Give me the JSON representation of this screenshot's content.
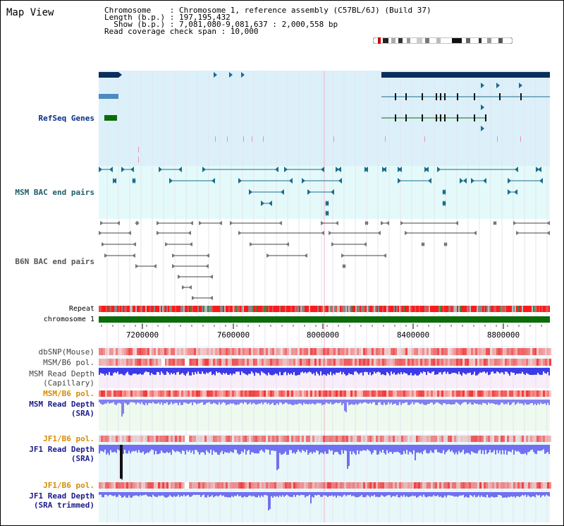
{
  "page": {
    "title": "Map View"
  },
  "info": {
    "line1": "Chromosome    : Chromosome 1, reference assembly (C57BL/6J) (Build 37)",
    "line2": "Length (b.p.) : 197,195,432",
    "line3": "  Show (b.p.) : 7,081,080-9,081,637 : 2,000,558 bp",
    "line4": "Read coverage check span : 10,000"
  },
  "tracks": {
    "refseq": "RefSeq Genes",
    "msm_bac": "MSM BAC end pairs",
    "b6n_bac": "B6N BAC end pairs",
    "repeat": "Repeat",
    "chromosome": "chromosome 1",
    "dbsnp": "dbSNP(Mouse)",
    "msm_b6_pol_1": "MSM/B6 pol.",
    "msm_read_depth_cap_1": "MSM Read Depth",
    "msm_read_depth_cap_2": "(Capillary)",
    "msm_b6_pol_2": "MSM/B6 pol.",
    "msm_read_depth_sra_1": "MSM Read Depth",
    "msm_read_depth_sra_2": "(SRA)",
    "jf1_b6_pol_1": "JF1/B6 pol.",
    "jf1_read_depth_1": "JF1 Read Depth",
    "jf1_read_depth_2": "(SRA)",
    "jf1_b6_pol_2": "JF1/B6 pol.",
    "jf1_read_depth_trim_1": "JF1 Read Depth",
    "jf1_read_depth_trim_2": "(SRA trimmed)"
  },
  "axis": {
    "ticks": [
      "7200000",
      "7600000",
      "8000000",
      "8400000",
      "8800000"
    ]
  },
  "colors": {
    "refseq_bg": "#dcf0fa",
    "msm_bac_bg": "#e4fafa",
    "navy": "#0a2e5c",
    "teal": "#1c6c8c",
    "green": "#0c6c0c",
    "red": "#ff0000",
    "blue": "#3c3cf0",
    "purple_bg": "#f8eefa",
    "orange": "#d88c00"
  }
}
